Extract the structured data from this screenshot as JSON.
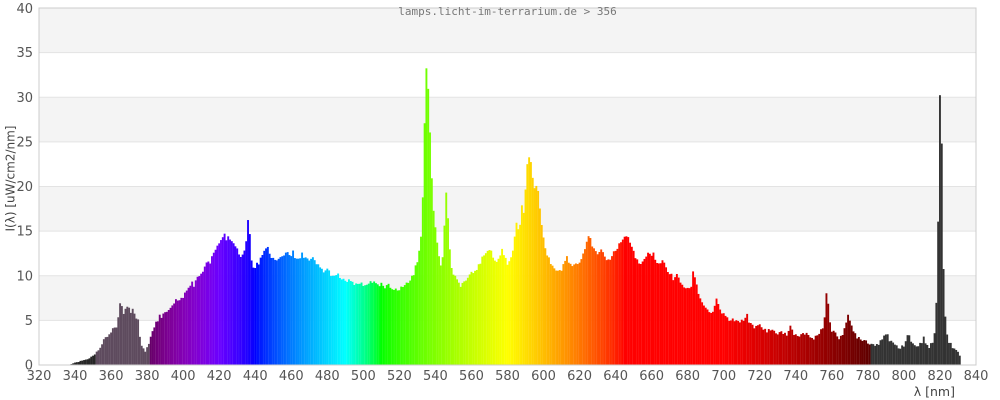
{
  "header": {
    "title": "lamps.licht-im-terrarium.de > 356"
  },
  "chart_data": {
    "type": "bar",
    "variant": "emission-spectrum",
    "title": "lamps.licht-im-terrarium.de > 356",
    "xlabel": "λ [nm]",
    "ylabel": "I(λ)  [uW/cm2/nm]",
    "xlim": [
      320,
      840
    ],
    "ylim": [
      0,
      40
    ],
    "x_ticks": [
      320,
      340,
      360,
      380,
      400,
      420,
      440,
      460,
      480,
      500,
      520,
      540,
      560,
      580,
      600,
      620,
      640,
      660,
      680,
      700,
      720,
      740,
      760,
      780,
      800,
      820,
      840
    ],
    "y_ticks": [
      0,
      5,
      10,
      15,
      20,
      25,
      30,
      35,
      40
    ],
    "grid": true,
    "legend_position": "none",
    "series": [
      {
        "name": "I(λ)",
        "unit": "uW/cm2/nm",
        "points": [
          [
            338,
            0.1
          ],
          [
            340,
            0.25
          ],
          [
            342,
            0.35
          ],
          [
            344,
            0.5
          ],
          [
            346,
            0.6
          ],
          [
            348,
            0.8
          ],
          [
            350,
            1.0
          ],
          [
            352,
            1.4
          ],
          [
            354,
            2.0
          ],
          [
            356,
            2.7
          ],
          [
            358,
            3.3
          ],
          [
            360,
            3.7
          ],
          [
            362,
            4.2
          ],
          [
            363,
            4.4
          ],
          [
            364,
            5.2
          ],
          [
            365,
            7.1
          ],
          [
            366,
            6.6
          ],
          [
            367,
            5.9
          ],
          [
            368,
            6.1
          ],
          [
            369,
            6.4
          ],
          [
            370,
            6.2
          ],
          [
            371,
            5.9
          ],
          [
            372,
            6.1
          ],
          [
            373,
            5.7
          ],
          [
            374,
            5.3
          ],
          [
            375,
            4.9
          ],
          [
            376,
            3.2
          ],
          [
            377,
            2.2
          ],
          [
            378,
            1.7
          ],
          [
            379,
            1.5
          ],
          [
            380,
            1.8
          ],
          [
            381,
            2.6
          ],
          [
            382,
            3.4
          ],
          [
            383,
            3.9
          ],
          [
            384,
            4.4
          ],
          [
            385,
            4.7
          ],
          [
            386,
            5.0
          ],
          [
            387,
            5.4
          ],
          [
            388,
            5.2
          ],
          [
            389,
            5.6
          ],
          [
            390,
            5.9
          ],
          [
            392,
            6.3
          ],
          [
            394,
            6.8
          ],
          [
            396,
            7.3
          ],
          [
            398,
            7.1
          ],
          [
            400,
            7.7
          ],
          [
            402,
            8.3
          ],
          [
            404,
            8.9
          ],
          [
            405,
            9.3
          ],
          [
            406,
            9.0
          ],
          [
            408,
            9.7
          ],
          [
            410,
            10.3
          ],
          [
            412,
            10.9
          ],
          [
            414,
            11.7
          ],
          [
            415,
            11.3
          ],
          [
            416,
            12.0
          ],
          [
            418,
            12.9
          ],
          [
            420,
            13.7
          ],
          [
            422,
            14.4
          ],
          [
            423,
            14.6
          ],
          [
            424,
            14.2
          ],
          [
            425,
            14.5
          ],
          [
            426,
            14.0
          ],
          [
            428,
            13.4
          ],
          [
            430,
            12.9
          ],
          [
            432,
            12.3
          ],
          [
            434,
            12.7
          ],
          [
            435,
            14.1
          ],
          [
            436,
            16.2
          ],
          [
            437,
            14.6
          ],
          [
            438,
            11.6
          ],
          [
            439,
            10.8
          ],
          [
            440,
            11.0
          ],
          [
            442,
            11.5
          ],
          [
            444,
            12.2
          ],
          [
            446,
            12.9
          ],
          [
            447,
            13.1
          ],
          [
            448,
            12.5
          ],
          [
            450,
            11.9
          ],
          [
            452,
            11.6
          ],
          [
            454,
            12.0
          ],
          [
            456,
            12.4
          ],
          [
            458,
            12.7
          ],
          [
            460,
            12.3
          ],
          [
            461,
            12.6
          ],
          [
            462,
            12.0
          ],
          [
            464,
            11.7
          ],
          [
            466,
            12.4
          ],
          [
            468,
            12.1
          ],
          [
            470,
            11.6
          ],
          [
            472,
            11.9
          ],
          [
            474,
            11.3
          ],
          [
            476,
            10.9
          ],
          [
            478,
            10.5
          ],
          [
            480,
            10.7
          ],
          [
            482,
            10.2
          ],
          [
            484,
            9.8
          ],
          [
            486,
            10.1
          ],
          [
            488,
            9.6
          ],
          [
            490,
            9.3
          ],
          [
            492,
            9.6
          ],
          [
            494,
            9.1
          ],
          [
            496,
            8.9
          ],
          [
            498,
            9.2
          ],
          [
            500,
            8.8
          ],
          [
            502,
            9.0
          ],
          [
            504,
            9.5
          ],
          [
            506,
            9.2
          ],
          [
            508,
            8.8
          ],
          [
            510,
            9.0
          ],
          [
            512,
            8.6
          ],
          [
            514,
            8.9
          ],
          [
            516,
            8.5
          ],
          [
            518,
            8.7
          ],
          [
            520,
            8.4
          ],
          [
            522,
            8.8
          ],
          [
            524,
            9.1
          ],
          [
            526,
            9.5
          ],
          [
            528,
            10.3
          ],
          [
            530,
            11.6
          ],
          [
            531,
            12.6
          ],
          [
            532,
            14.6
          ],
          [
            533,
            19.0
          ],
          [
            534,
            27.0
          ],
          [
            535,
            33.0
          ],
          [
            536,
            31.0
          ],
          [
            537,
            26.0
          ],
          [
            538,
            21.0
          ],
          [
            539,
            17.5
          ],
          [
            540,
            15.5
          ],
          [
            541,
            13.8
          ],
          [
            542,
            12.4
          ],
          [
            543,
            11.4
          ],
          [
            544,
            12.0
          ],
          [
            545,
            15.5
          ],
          [
            546,
            19.4
          ],
          [
            547,
            16.5
          ],
          [
            548,
            12.8
          ],
          [
            549,
            11.0
          ],
          [
            550,
            10.1
          ],
          [
            552,
            9.4
          ],
          [
            554,
            9.0
          ],
          [
            556,
            9.3
          ],
          [
            558,
            9.7
          ],
          [
            560,
            10.2
          ],
          [
            562,
            10.6
          ],
          [
            564,
            11.1
          ],
          [
            566,
            11.9
          ],
          [
            568,
            12.7
          ],
          [
            570,
            13.1
          ],
          [
            571,
            12.6
          ],
          [
            572,
            12.1
          ],
          [
            574,
            11.5
          ],
          [
            576,
            12.3
          ],
          [
            577,
            12.9
          ],
          [
            578,
            12.5
          ],
          [
            579,
            11.9
          ],
          [
            580,
            11.3
          ],
          [
            582,
            12.1
          ],
          [
            583,
            13.0
          ],
          [
            584,
            14.5
          ],
          [
            585,
            16.0
          ],
          [
            586,
            15.0
          ],
          [
            587,
            15.8
          ],
          [
            588,
            17.8
          ],
          [
            589,
            16.8
          ],
          [
            590,
            19.5
          ],
          [
            591,
            22.5
          ],
          [
            592,
            23.4
          ],
          [
            593,
            22.6
          ],
          [
            594,
            20.8
          ],
          [
            595,
            19.6
          ],
          [
            596,
            19.9
          ],
          [
            597,
            19.3
          ],
          [
            598,
            17.6
          ],
          [
            599,
            15.8
          ],
          [
            600,
            14.2
          ],
          [
            601,
            13.1
          ],
          [
            602,
            12.3
          ],
          [
            604,
            11.4
          ],
          [
            606,
            10.9
          ],
          [
            608,
            10.5
          ],
          [
            610,
            10.7
          ],
          [
            612,
            11.5
          ],
          [
            613,
            12.1
          ],
          [
            614,
            11.6
          ],
          [
            616,
            11.1
          ],
          [
            618,
            11.4
          ],
          [
            620,
            11.7
          ],
          [
            622,
            12.5
          ],
          [
            624,
            13.9
          ],
          [
            625,
            14.6
          ],
          [
            626,
            14.0
          ],
          [
            628,
            12.9
          ],
          [
            630,
            12.3
          ],
          [
            632,
            12.7
          ],
          [
            634,
            12.1
          ],
          [
            636,
            11.7
          ],
          [
            638,
            12.3
          ],
          [
            640,
            12.9
          ],
          [
            642,
            13.5
          ],
          [
            644,
            14.1
          ],
          [
            646,
            14.5
          ],
          [
            647,
            14.2
          ],
          [
            648,
            13.7
          ],
          [
            650,
            12.7
          ],
          [
            652,
            11.7
          ],
          [
            654,
            11.1
          ],
          [
            656,
            11.9
          ],
          [
            658,
            12.4
          ],
          [
            660,
            12.1
          ],
          [
            661,
            12.5
          ],
          [
            662,
            11.9
          ],
          [
            664,
            11.3
          ],
          [
            666,
            11.7
          ],
          [
            668,
            10.9
          ],
          [
            670,
            10.3
          ],
          [
            672,
            9.7
          ],
          [
            674,
            10.0
          ],
          [
            676,
            9.3
          ],
          [
            678,
            8.8
          ],
          [
            680,
            8.4
          ],
          [
            682,
            8.9
          ],
          [
            683,
            10.3
          ],
          [
            684,
            10.0
          ],
          [
            685,
            9.0
          ],
          [
            686,
            8.0
          ],
          [
            688,
            7.1
          ],
          [
            690,
            6.4
          ],
          [
            692,
            6.0
          ],
          [
            694,
            5.8
          ],
          [
            696,
            7.2
          ],
          [
            697,
            6.8
          ],
          [
            698,
            6.2
          ],
          [
            700,
            5.6
          ],
          [
            702,
            5.2
          ],
          [
            704,
            4.9
          ],
          [
            706,
            5.1
          ],
          [
            708,
            4.7
          ],
          [
            710,
            4.9
          ],
          [
            712,
            5.4
          ],
          [
            713,
            5.5
          ],
          [
            714,
            4.9
          ],
          [
            716,
            4.5
          ],
          [
            718,
            4.2
          ],
          [
            720,
            4.4
          ],
          [
            722,
            4.0
          ],
          [
            724,
            3.8
          ],
          [
            726,
            4.1
          ],
          [
            728,
            3.7
          ],
          [
            730,
            3.5
          ],
          [
            732,
            3.8
          ],
          [
            734,
            3.4
          ],
          [
            736,
            3.6
          ],
          [
            737,
            4.4
          ],
          [
            738,
            3.9
          ],
          [
            740,
            3.3
          ],
          [
            742,
            3.1
          ],
          [
            744,
            3.4
          ],
          [
            746,
            3.6
          ],
          [
            748,
            3.2
          ],
          [
            750,
            2.9
          ],
          [
            752,
            3.4
          ],
          [
            754,
            3.8
          ],
          [
            755,
            4.3
          ],
          [
            756,
            5.5
          ],
          [
            757,
            8.0
          ],
          [
            758,
            6.8
          ],
          [
            759,
            4.9
          ],
          [
            760,
            3.9
          ],
          [
            762,
            3.4
          ],
          [
            764,
            3.1
          ],
          [
            766,
            3.6
          ],
          [
            768,
            4.7
          ],
          [
            769,
            5.4
          ],
          [
            770,
            4.8
          ],
          [
            772,
            3.8
          ],
          [
            774,
            3.2
          ],
          [
            776,
            3.0
          ],
          [
            778,
            2.8
          ],
          [
            780,
            2.6
          ],
          [
            782,
            2.4
          ],
          [
            784,
            2.2
          ],
          [
            786,
            2.5
          ],
          [
            788,
            3.1
          ],
          [
            790,
            3.6
          ],
          [
            791,
            3.2
          ],
          [
            792,
            2.7
          ],
          [
            794,
            2.3
          ],
          [
            796,
            2.1
          ],
          [
            798,
            2.0
          ],
          [
            800,
            2.3
          ],
          [
            802,
            3.1
          ],
          [
            803,
            3.3
          ],
          [
            804,
            2.7
          ],
          [
            806,
            2.2
          ],
          [
            808,
            2.1
          ],
          [
            810,
            2.4
          ],
          [
            811,
            3.0
          ],
          [
            812,
            2.5
          ],
          [
            814,
            2.1
          ],
          [
            815,
            2.3
          ],
          [
            816,
            2.6
          ],
          [
            817,
            3.5
          ],
          [
            818,
            7.0
          ],
          [
            819,
            16.0
          ],
          [
            820,
            30.0
          ],
          [
            821,
            25.0
          ],
          [
            822,
            11.0
          ],
          [
            823,
            5.5
          ],
          [
            824,
            3.4
          ],
          [
            825,
            2.7
          ],
          [
            826,
            2.3
          ],
          [
            827,
            2.1
          ],
          [
            828,
            1.9
          ],
          [
            829,
            1.6
          ],
          [
            830,
            1.4
          ],
          [
            831,
            1.0
          ]
        ]
      }
    ]
  },
  "style": {
    "band_color": "#f4f4f4",
    "grid_color": "#e3e3e3",
    "border_color": "#cccccc",
    "tick_color": "#555555",
    "label_color": "#444444",
    "title_color": "#777777",
    "uvb_color": "#262626",
    "uva_color": "#5e4b5e",
    "ir_color": "#333333",
    "uvb_end": 352,
    "uva_end": 382,
    "vis_end": 781,
    "noise": 0.25
  }
}
